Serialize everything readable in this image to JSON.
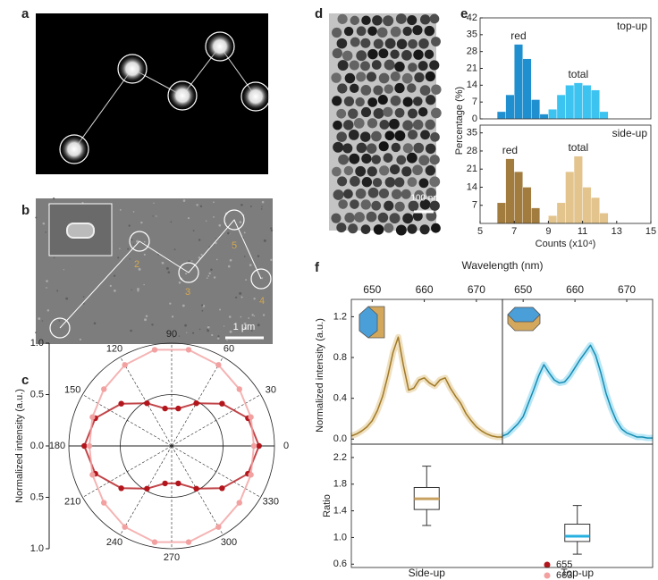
{
  "panel_labels": [
    "a",
    "b",
    "c",
    "d",
    "e",
    "f"
  ],
  "image_b": {
    "numbers": [
      "2",
      "3",
      "4",
      "5"
    ],
    "scale_bar": "1 μm"
  },
  "image_d": {
    "scale_bar": "100 nm"
  },
  "chart_data": [
    {
      "type": "polar",
      "ylabel": "Normalized intensity (a.u.)",
      "x": [
        0,
        20,
        40,
        60,
        80,
        100,
        120,
        140,
        160,
        180,
        200,
        220,
        240,
        260,
        280,
        300,
        320,
        340
      ],
      "xticks": [
        0,
        30,
        60,
        90,
        120,
        150,
        180,
        210,
        240,
        270,
        300,
        330
      ],
      "ylim": [
        -1,
        1
      ],
      "yticks": [
        {
          "value": -1,
          "label": "1.0"
        },
        {
          "value": -0.5,
          "label": "0.5"
        },
        {
          "value": 0,
          "label": "0.0"
        },
        0.5,
        {
          "value": 1,
          "label": "1.0"
        }
      ],
      "series": [
        {
          "name": "655",
          "color": "#b2161c",
          "values": [
            0.85,
            0.79,
            0.64,
            0.48,
            0.37,
            0.37,
            0.48,
            0.64,
            0.79,
            0.85,
            0.79,
            0.64,
            0.48,
            0.37,
            0.37,
            0.48,
            0.64,
            0.79
          ]
        },
        {
          "name": "663",
          "color": "#f2a0a0",
          "values": [
            0.8,
            0.82,
            0.86,
            0.91,
            0.95,
            0.95,
            0.91,
            0.86,
            0.82,
            0.8,
            0.82,
            0.86,
            0.91,
            0.95,
            0.95,
            0.91,
            0.86,
            0.82
          ]
        }
      ]
    },
    {
      "type": "histogram",
      "title": "top-up",
      "ylabel": "Percentage (%)",
      "bins": [
        6,
        6.5,
        7,
        7.5,
        8,
        8.5,
        9,
        9.5,
        10,
        10.5,
        11,
        11.5,
        12,
        12.5,
        13
      ],
      "xlim": [
        5,
        15
      ],
      "ylim": [
        0,
        42
      ],
      "yticks": [
        0,
        7,
        14,
        21,
        28,
        35,
        42
      ],
      "series": [
        {
          "name": "red",
          "color": "#1f8fcf",
          "values": [
            3,
            10,
            31,
            25,
            8,
            2,
            0,
            0,
            0,
            0,
            0,
            0,
            0,
            0
          ]
        },
        {
          "name": "total",
          "color": "#3cc3f0",
          "values": [
            0,
            0,
            0,
            0,
            0,
            0,
            4,
            10,
            14,
            15,
            14,
            12,
            3,
            0
          ]
        }
      ]
    },
    {
      "type": "histogram",
      "title": "side-up",
      "xlabel": "Counts (x10⁴)",
      "bins": [
        6,
        6.5,
        7,
        7.5,
        8,
        8.5,
        9,
        9.5,
        10,
        10.5,
        11,
        11.5,
        12,
        12.5,
        13
      ],
      "xlim": [
        5,
        15
      ],
      "xticks": [
        5,
        7,
        9,
        11,
        13,
        15
      ],
      "ylim": [
        0,
        38
      ],
      "yticks": [
        7,
        14,
        21,
        28,
        35
      ],
      "series": [
        {
          "name": "red",
          "color": "#a27c3e",
          "values": [
            8,
            25,
            20,
            14,
            6,
            0,
            0,
            0,
            0,
            0,
            0,
            0,
            0,
            0
          ]
        },
        {
          "name": "total",
          "color": "#e2c48c",
          "values": [
            0,
            0,
            0,
            0,
            0,
            0,
            3,
            8,
            20,
            26,
            14,
            10,
            4,
            0
          ]
        }
      ]
    },
    {
      "type": "line",
      "xlabel": "Wavelength (nm)",
      "ylabel": "Normalized intensity (a.u.)",
      "x": [
        646,
        647,
        648,
        649,
        650,
        651,
        652,
        653,
        654,
        655,
        656,
        657,
        658,
        659,
        660,
        661,
        662,
        663,
        664,
        665,
        666,
        667,
        668,
        669,
        670,
        671,
        672,
        673,
        674,
        675
      ],
      "xlim": [
        646,
        675
      ],
      "xticks": [
        650,
        660,
        670
      ],
      "ylim": [
        -0.05,
        1.37
      ],
      "yticks": [
        {
          "value": 0,
          "label": "0.0"
        },
        0.4,
        0.8,
        1.2
      ],
      "series": [
        {
          "color": "#c9972e",
          "values": [
            0.03,
            0.05,
            0.08,
            0.12,
            0.18,
            0.28,
            0.42,
            0.62,
            0.85,
            1.0,
            0.72,
            0.48,
            0.5,
            0.58,
            0.6,
            0.55,
            0.52,
            0.58,
            0.6,
            0.5,
            0.42,
            0.35,
            0.25,
            0.18,
            0.12,
            0.08,
            0.05,
            0.03,
            0.02,
            0.02
          ]
        }
      ]
    },
    {
      "type": "line",
      "x": [
        646,
        647,
        648,
        649,
        650,
        651,
        652,
        653,
        654,
        655,
        656,
        657,
        658,
        659,
        660,
        661,
        662,
        663,
        664,
        665,
        666,
        667,
        668,
        669,
        670,
        671,
        672,
        673,
        674,
        675
      ],
      "xlim": [
        646,
        675
      ],
      "xticks": [
        650,
        660,
        670
      ],
      "ylim": [
        -0.05,
        1.37
      ],
      "series": [
        {
          "color": "#1ab0e0",
          "values": [
            0.03,
            0.05,
            0.1,
            0.15,
            0.22,
            0.35,
            0.48,
            0.62,
            0.73,
            0.65,
            0.58,
            0.55,
            0.56,
            0.62,
            0.7,
            0.78,
            0.85,
            0.92,
            0.82,
            0.65,
            0.45,
            0.3,
            0.18,
            0.1,
            0.06,
            0.04,
            0.02,
            0.02,
            0.01,
            0.01
          ]
        }
      ]
    },
    {
      "type": "box",
      "ylabel": "Ratio",
      "categories": [
        "Side-up",
        "Top-up"
      ],
      "ylim": [
        0.55,
        2.4
      ],
      "yticks": [
        0.6,
        {
          "value": 1,
          "label": "1.0"
        },
        1.4,
        1.8,
        2.2
      ],
      "median_colors": [
        "#c8a060",
        "#26b0e0"
      ],
      "stats": [
        {
          "min": 1.18,
          "q1": 1.42,
          "median": 1.58,
          "q3": 1.75,
          "max": 2.07
        },
        {
          "min": 0.75,
          "q1": 0.94,
          "median": 1.02,
          "q3": 1.2,
          "max": 1.48
        }
      ]
    }
  ]
}
